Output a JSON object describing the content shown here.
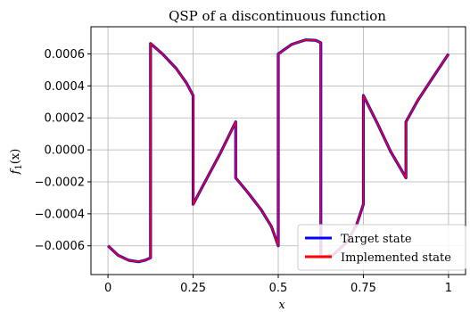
{
  "chart_data": {
    "type": "line",
    "title": "QSP of a discontinuous function",
    "xlabel": "x",
    "ylabel": "f_1(x)",
    "ylabel_base": "f",
    "ylabel_sub": "1",
    "ylabel_arg": "(x)",
    "xlim": [
      -0.05,
      1.05
    ],
    "ylim": [
      -0.00078,
      0.00077
    ],
    "grid": true,
    "legend_position": "lower right",
    "x_ticks": [
      0,
      0.25,
      0.5,
      0.75,
      1
    ],
    "x_tick_labels": [
      "0",
      "0.25",
      "0.5",
      "0.75",
      "1"
    ],
    "y_ticks": [
      -0.0006,
      -0.0004,
      -0.0002,
      0,
      0.0002,
      0.0004,
      0.0006
    ],
    "y_tick_labels": [
      "−0.0006",
      "−0.0004",
      "−0.0002",
      "0.0000",
      "0.0002",
      "0.0004",
      "0.0006"
    ],
    "series": [
      {
        "name": "Target state",
        "color": "#0000ff",
        "points": [
          [
            0,
            -0.0006
          ],
          [
            0.03,
            -0.00066
          ],
          [
            0.06,
            -0.00069
          ],
          [
            0.09,
            -0.0007
          ],
          [
            0.11,
            -0.00069
          ],
          [
            0.125,
            -0.000675
          ],
          [
            0.125,
            0.000665
          ],
          [
            0.16,
            0.0006
          ],
          [
            0.2,
            0.00051
          ],
          [
            0.23,
            0.00042
          ],
          [
            0.25,
            0.00034
          ],
          [
            0.25,
            -0.00034
          ],
          [
            0.29,
            -0.00018
          ],
          [
            0.33,
            -2e-05
          ],
          [
            0.375,
            0.000175
          ],
          [
            0.375,
            -0.000175
          ],
          [
            0.41,
            -0.000265
          ],
          [
            0.45,
            -0.000375
          ],
          [
            0.48,
            -0.00048
          ],
          [
            0.5,
            -0.0006
          ],
          [
            0.5,
            0.0006
          ],
          [
            0.54,
            0.00066
          ],
          [
            0.58,
            0.000688
          ],
          [
            0.61,
            0.000685
          ],
          [
            0.625,
            0.00067
          ],
          [
            0.625,
            -0.00067
          ],
          [
            0.66,
            -0.00066
          ],
          [
            0.7,
            -0.00058
          ],
          [
            0.73,
            -0.00047
          ],
          [
            0.75,
            -0.00034
          ],
          [
            0.75,
            0.00034
          ],
          [
            0.79,
            0.00017
          ],
          [
            0.83,
            -1e-05
          ],
          [
            0.875,
            -0.000175
          ],
          [
            0.875,
            0.000175
          ],
          [
            0.91,
            0.00031
          ],
          [
            0.95,
            0.00044
          ],
          [
            1,
            0.0006
          ]
        ]
      },
      {
        "name": "Implemented state",
        "color": "#ff0000",
        "points": [
          [
            0,
            -0.0006
          ],
          [
            0.03,
            -0.00066
          ],
          [
            0.06,
            -0.00069
          ],
          [
            0.09,
            -0.0007
          ],
          [
            0.11,
            -0.00069
          ],
          [
            0.125,
            -0.000675
          ],
          [
            0.125,
            0.000665
          ],
          [
            0.16,
            0.0006
          ],
          [
            0.2,
            0.00051
          ],
          [
            0.23,
            0.00042
          ],
          [
            0.25,
            0.00034
          ],
          [
            0.25,
            -0.00034
          ],
          [
            0.29,
            -0.00018
          ],
          [
            0.33,
            -2e-05
          ],
          [
            0.375,
            0.000175
          ],
          [
            0.375,
            -0.000175
          ],
          [
            0.41,
            -0.000265
          ],
          [
            0.45,
            -0.000375
          ],
          [
            0.48,
            -0.00048
          ],
          [
            0.5,
            -0.0006
          ],
          [
            0.5,
            0.0006
          ],
          [
            0.54,
            0.00066
          ],
          [
            0.58,
            0.000688
          ],
          [
            0.61,
            0.000685
          ],
          [
            0.625,
            0.00067
          ],
          [
            0.625,
            -0.00067
          ],
          [
            0.66,
            -0.00066
          ],
          [
            0.7,
            -0.00058
          ],
          [
            0.73,
            -0.00047
          ],
          [
            0.75,
            -0.00034
          ],
          [
            0.75,
            0.00034
          ],
          [
            0.79,
            0.00017
          ],
          [
            0.83,
            -1e-05
          ],
          [
            0.875,
            -0.000175
          ],
          [
            0.875,
            0.000175
          ],
          [
            0.91,
            0.00031
          ],
          [
            0.95,
            0.00044
          ],
          [
            1,
            0.0006
          ]
        ]
      }
    ]
  }
}
